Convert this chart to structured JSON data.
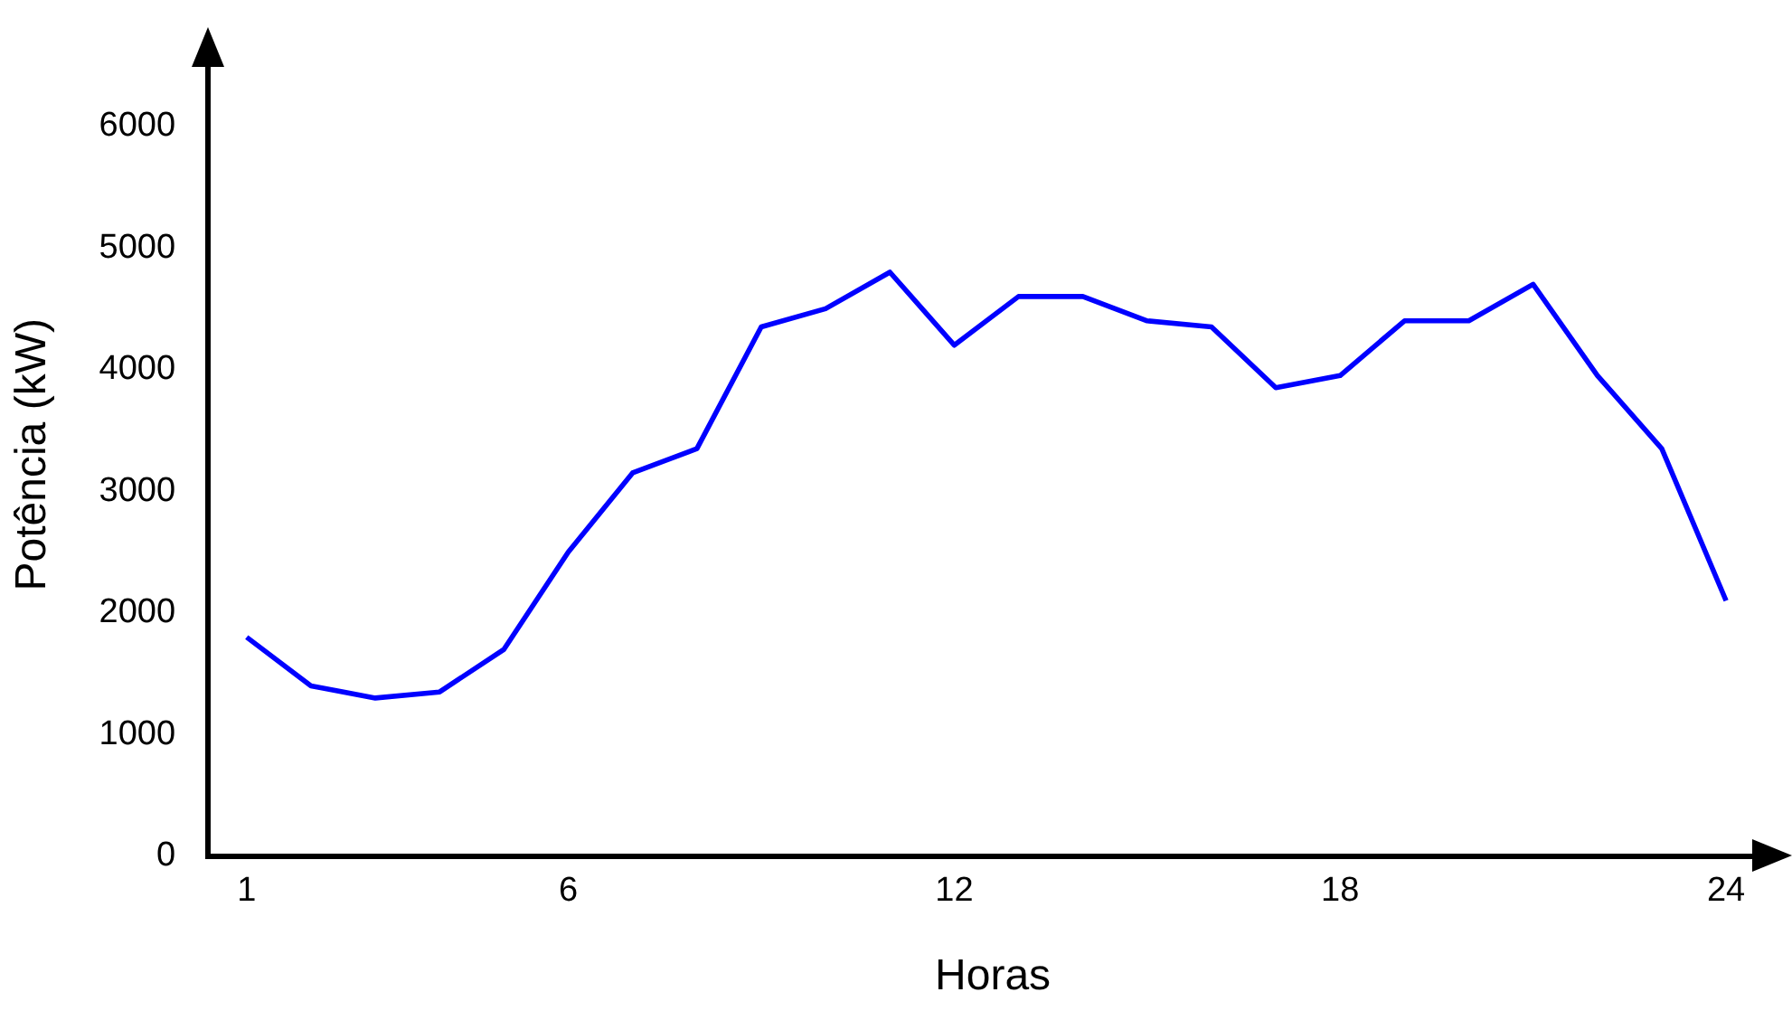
{
  "chart_data": {
    "type": "line",
    "xlabel": "Horas",
    "ylabel": "Potência (kW)",
    "x": [
      1,
      2,
      3,
      4,
      5,
      6,
      7,
      8,
      9,
      10,
      11,
      12,
      13,
      14,
      15,
      16,
      17,
      18,
      19,
      20,
      21,
      22,
      23,
      24
    ],
    "series": [
      {
        "color": "#0000ff",
        "values": [
          1800,
          1400,
          1300,
          1350,
          1700,
          2500,
          3150,
          3350,
          4350,
          4500,
          4800,
          4200,
          4600,
          4600,
          4400,
          4350,
          3850,
          3950,
          4400,
          4400,
          4700,
          3950,
          3350,
          2100
        ]
      }
    ],
    "xlim": [
      0.4,
      24.8
    ],
    "xticks": [
      1,
      6,
      12,
      18,
      24
    ],
    "ylim": [
      0,
      6600
    ],
    "yticks": [
      0,
      1000,
      2000,
      3000,
      4000,
      5000,
      6000
    ],
    "grid": false,
    "legend": false,
    "marker": "none",
    "line_style": "solid"
  }
}
